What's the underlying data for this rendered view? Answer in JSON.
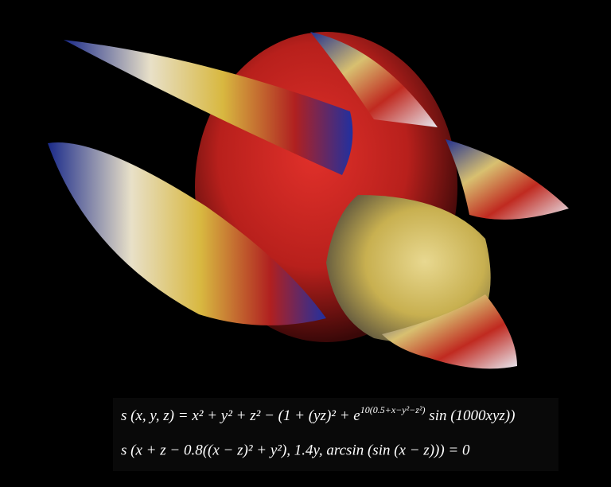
{
  "formula": {
    "line1": {
      "main": "s (x, y, z) = x² + y² + z² − (1 + (yz)² + e",
      "exponent": "10(0.5+x−y²−z²)",
      "tail": " sin (1000xyz))"
    },
    "line2": "s (x + z − 0.8((x − z)² + y²), 1.4y, arcsin (sin (x − z))) = 0"
  }
}
